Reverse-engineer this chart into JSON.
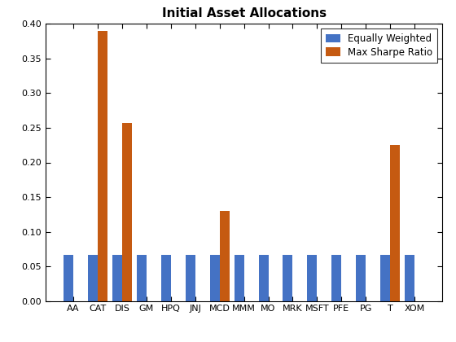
{
  "categories": [
    "AA",
    "CAT",
    "DIS",
    "GM",
    "HPQ",
    "JNJ",
    "MCD",
    "MMM",
    "MO",
    "MRK",
    "MSFT",
    "PFE",
    "PG",
    "T",
    "XOM"
  ],
  "equally_weighted": [
    0.0667,
    0.0667,
    0.0667,
    0.0667,
    0.0667,
    0.0667,
    0.0667,
    0.0667,
    0.0667,
    0.0667,
    0.0667,
    0.0667,
    0.0667,
    0.0667,
    0.0667
  ],
  "max_sharpe": [
    0.0,
    0.39,
    0.257,
    0.0,
    0.0,
    0.0,
    0.13,
    0.0,
    0.0,
    0.0,
    0.0,
    0.0,
    0.0,
    0.225,
    0.0
  ],
  "color_ew": "#4472c4",
  "color_ms": "#c55a11",
  "title": "Initial Asset Allocations",
  "legend_labels": [
    "Equally Weighted",
    "Max Sharpe Ratio"
  ],
  "ylim": [
    0,
    0.4
  ],
  "yticks": [
    0.0,
    0.05,
    0.1,
    0.15,
    0.2,
    0.25,
    0.3,
    0.35,
    0.4
  ],
  "bar_width": 0.4,
  "figsize": [
    5.6,
    4.2
  ],
  "dpi": 100
}
